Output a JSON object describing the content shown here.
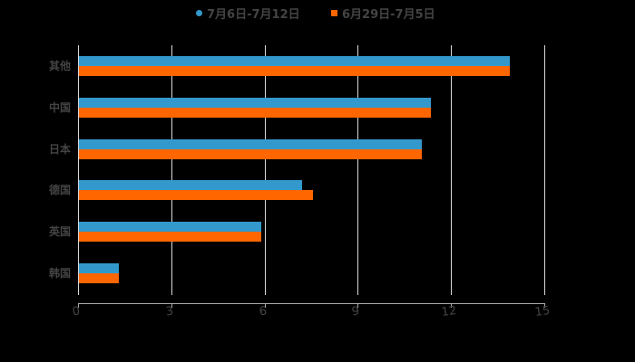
{
  "legend": {
    "items": [
      {
        "label": "7月6日-7月12日",
        "color": "#3399CC",
        "marker": "circle"
      },
      {
        "label": "6月29日-7月5日",
        "color": "#FF6600",
        "marker": "square"
      }
    ]
  },
  "axis": {
    "x_ticks": [
      "0",
      "3",
      "6",
      "9",
      "12",
      "15"
    ]
  },
  "colors": {
    "background": "#000000",
    "text": "#444444",
    "grid": "#d9d9d9",
    "series_1": "#3399CC",
    "series_2": "#FF6600"
  },
  "chart_data": {
    "type": "bar",
    "orientation": "horizontal",
    "title": "",
    "xlabel": "",
    "ylabel": "",
    "categories": [
      "其他",
      "中国",
      "日本",
      "德国",
      "英国",
      "韩国"
    ],
    "series": [
      {
        "name": "7月6日-7月12日",
        "color": "#3399CC",
        "values": [
          13.9,
          11.35,
          11.05,
          7.2,
          5.9,
          1.3
        ]
      },
      {
        "name": "6月29日-7月5日",
        "color": "#FF6600",
        "values": [
          13.9,
          11.35,
          11.05,
          7.55,
          5.9,
          1.3
        ]
      }
    ],
    "xlim": [
      0,
      15
    ],
    "x_ticks": [
      0,
      3,
      6,
      9,
      12,
      15
    ],
    "grid": "vertical",
    "legend_position": "top"
  }
}
